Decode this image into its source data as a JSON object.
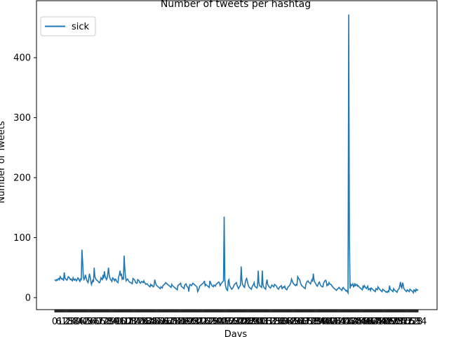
{
  "chart_data": {
    "type": "line",
    "title": "Number of tweets per hashtag",
    "xlabel": "Days",
    "ylabel": "Number of Tweets",
    "x_tick_note": "dense overlapping day tick labels",
    "y_ticks": [
      0,
      100,
      200,
      300,
      400
    ],
    "ylim": [
      -20,
      495
    ],
    "grid": false,
    "legend_position": "top-left",
    "series": [
      {
        "name": "sick",
        "color": "#1f77b4",
        "values": [
          30,
          29,
          28,
          30,
          29,
          31,
          32,
          30,
          35,
          33,
          31,
          32,
          30,
          29,
          42,
          33,
          31,
          30,
          29,
          32,
          35,
          34,
          32,
          30,
          31,
          29,
          28,
          33,
          30,
          29,
          31,
          30,
          28,
          30,
          33,
          32,
          29,
          27,
          31,
          30,
          80,
          60,
          35,
          30,
          32,
          38,
          34,
          29,
          27,
          25,
          32,
          40,
          35,
          28,
          22,
          25,
          30,
          26,
          50,
          35,
          32,
          30,
          29,
          28,
          27,
          25,
          25,
          28,
          33,
          31,
          30,
          38,
          32,
          44,
          36,
          33,
          30,
          32,
          40,
          50,
          38,
          33,
          30,
          29,
          27,
          33,
          32,
          30,
          28,
          31,
          30,
          27,
          26,
          25,
          35,
          38,
          45,
          36,
          40,
          31,
          33,
          30,
          70,
          48,
          35,
          28,
          30,
          31,
          29,
          27,
          26,
          25,
          25,
          24,
          23,
          32,
          31,
          30,
          28,
          25,
          24,
          24,
          30,
          29,
          28,
          25,
          24,
          26,
          27,
          26,
          25,
          28,
          25,
          24,
          22,
          23,
          23,
          21,
          20,
          19,
          18,
          22,
          20,
          21,
          19,
          18,
          20,
          30,
          25,
          22,
          20,
          19,
          18,
          17,
          16,
          15,
          18,
          17,
          16,
          20,
          21,
          22,
          23,
          25,
          24,
          23,
          22,
          21,
          20,
          19,
          18,
          17,
          22,
          20,
          19,
          18,
          17,
          16,
          15,
          14,
          13,
          20,
          21,
          22,
          23,
          24,
          19,
          18,
          17,
          16,
          15,
          21,
          22,
          23,
          19,
          18,
          17,
          10,
          20,
          22,
          21,
          20,
          22,
          24,
          23,
          22,
          21,
          20,
          19,
          18,
          10,
          12,
          15,
          19,
          20,
          21,
          22,
          23,
          24,
          25,
          28,
          20,
          22,
          21,
          20,
          19,
          18,
          17,
          28,
          25,
          22,
          20,
          19,
          18,
          21,
          20,
          19,
          22,
          23,
          24,
          25,
          26,
          25,
          20,
          22,
          24,
          25,
          27,
          28,
          135,
          30,
          20,
          15,
          13,
          12,
          28,
          30,
          20,
          18,
          16,
          14,
          15,
          17,
          19,
          22,
          23,
          24,
          25,
          20,
          18,
          15,
          17,
          19,
          21,
          52,
          30,
          22,
          20,
          18,
          17,
          25,
          30,
          32,
          28,
          22,
          19,
          17,
          16,
          15,
          14,
          18,
          20,
          22,
          25,
          19,
          18,
          17,
          16,
          19,
          45,
          25,
          20,
          19,
          18,
          17,
          45,
          22,
          18,
          16,
          15,
          14,
          25,
          30,
          22,
          20,
          18,
          17,
          16,
          18,
          21,
          20,
          19,
          18,
          22,
          21,
          20,
          19,
          16,
          15,
          14,
          17,
          18,
          19,
          20,
          15,
          16,
          18,
          17,
          19,
          15,
          14,
          13,
          16,
          18,
          19,
          20,
          22,
          25,
          31,
          28,
          25,
          23,
          22,
          21,
          20,
          22,
          21,
          35,
          33,
          31,
          30,
          25,
          22,
          20,
          19,
          18,
          17,
          16,
          15,
          22,
          25,
          27,
          28,
          26,
          25,
          24,
          23,
          27,
          30,
          28,
          40,
          30,
          26,
          24,
          22,
          20,
          19,
          22,
          25,
          26,
          22,
          20,
          19,
          18,
          18,
          24,
          26,
          28,
          29,
          27,
          20,
          22,
          21,
          25,
          23,
          22,
          22,
          20,
          19,
          17,
          16,
          15,
          14,
          13,
          12,
          14,
          15,
          16,
          17,
          15,
          14,
          13,
          12,
          16,
          17,
          15,
          14,
          13,
          11,
          12,
          10,
          8,
          472,
          100,
          15,
          22,
          20,
          21,
          23,
          18,
          19,
          24,
          20,
          21,
          22,
          19,
          20,
          18,
          17,
          16,
          15,
          14,
          13,
          19,
          17,
          20,
          18,
          16,
          15,
          17,
          19,
          13,
          14,
          15,
          12,
          16,
          15,
          14,
          13,
          12,
          11,
          10,
          15,
          14,
          13,
          18,
          16,
          15,
          13,
          12,
          11,
          10,
          14,
          13,
          12,
          11,
          10,
          9,
          10,
          9,
          11,
          10,
          20,
          14,
          13,
          12,
          11,
          10,
          15,
          13,
          12,
          11,
          10,
          9,
          12,
          14,
          15,
          20,
          26,
          18,
          16,
          25,
          22,
          15,
          14,
          12,
          11,
          10,
          13,
          12,
          11,
          10,
          14,
          13,
          12,
          11,
          10,
          8,
          13,
          12,
          10,
          14,
          12,
          13,
          12
        ]
      }
    ]
  }
}
